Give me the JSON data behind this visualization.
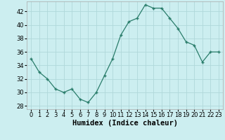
{
  "x": [
    0,
    1,
    2,
    3,
    4,
    5,
    6,
    7,
    8,
    9,
    10,
    11,
    12,
    13,
    14,
    15,
    16,
    17,
    18,
    19,
    20,
    21,
    22,
    23
  ],
  "y": [
    35,
    33,
    32,
    30.5,
    30,
    30.5,
    29,
    28.5,
    30,
    32.5,
    35,
    38.5,
    40.5,
    41,
    43,
    42.5,
    42.5,
    41,
    39.5,
    37.5,
    37,
    34.5,
    36,
    36
  ],
  "xlabel": "Humidex (Indice chaleur)",
  "ylabel": "",
  "xlim": [
    -0.5,
    23.5
  ],
  "ylim": [
    27.5,
    43.5
  ],
  "yticks": [
    28,
    30,
    32,
    34,
    36,
    38,
    40,
    42
  ],
  "xticks": [
    0,
    1,
    2,
    3,
    4,
    5,
    6,
    7,
    8,
    9,
    10,
    11,
    12,
    13,
    14,
    15,
    16,
    17,
    18,
    19,
    20,
    21,
    22,
    23
  ],
  "line_color": "#2a7d6b",
  "bg_color": "#cceef0",
  "grid_color": "#b0d8da",
  "xlabel_fontsize": 7.5,
  "tick_fontsize": 6.0
}
